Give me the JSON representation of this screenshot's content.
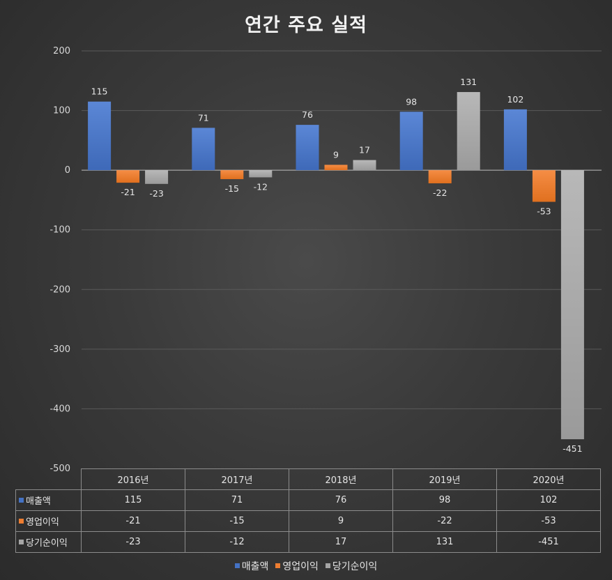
{
  "chart_data": {
    "type": "bar",
    "title": "연간 주요 실적",
    "categories": [
      "2016년",
      "2017년",
      "2018년",
      "2019년",
      "2020년"
    ],
    "series": [
      {
        "name": "매출액",
        "values": [
          115,
          71,
          76,
          98,
          102
        ],
        "color": "#4472c4"
      },
      {
        "name": "영업이익",
        "values": [
          -21,
          -15,
          9,
          -22,
          -53
        ],
        "color": "#ed7d31"
      },
      {
        "name": "당기순이익",
        "values": [
          -23,
          -12,
          17,
          131,
          -451
        ],
        "color": "#a5a5a5"
      }
    ],
    "ylim": [
      -500,
      200
    ],
    "yticks": [
      200,
      100,
      0,
      -100,
      -200,
      -300,
      -400,
      -500
    ],
    "grid": true,
    "legend": "bottom",
    "data_table": true
  }
}
